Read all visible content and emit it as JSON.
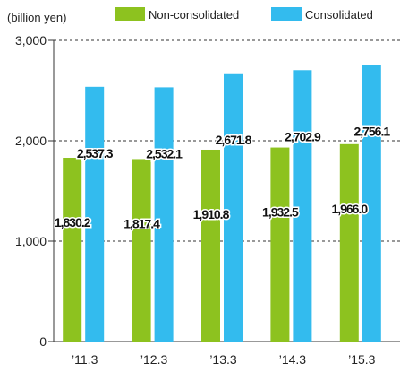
{
  "chart_data": {
    "type": "bar",
    "unit_label": "(billion yen)",
    "categories": [
      "’11.3",
      "’12.3",
      "’13.3",
      "’14.3",
      "’15.3"
    ],
    "series": [
      {
        "name": "Non-consolidated",
        "color": "#8dc21f",
        "values": [
          1830.2,
          1817.4,
          1910.8,
          1932.5,
          1966.0
        ],
        "labels": [
          "1,830.2",
          "1,817.4",
          "1,910.8",
          "1,932.5",
          "1,966.0"
        ]
      },
      {
        "name": "Consolidated",
        "color": "#33bbee",
        "values": [
          2537.3,
          2532.1,
          2671.8,
          2702.9,
          2756.1
        ],
        "labels": [
          "2,537.3",
          "2,532.1",
          "2,671.8",
          "2,702.9",
          "2,756.1"
        ]
      }
    ],
    "y_ticks": [
      0,
      1000,
      2000,
      3000
    ],
    "y_tick_labels": [
      "0",
      "1,000",
      "2,000",
      "3,000"
    ],
    "ylim": [
      0,
      3000
    ],
    "grid": "dashed",
    "legend": "top"
  }
}
